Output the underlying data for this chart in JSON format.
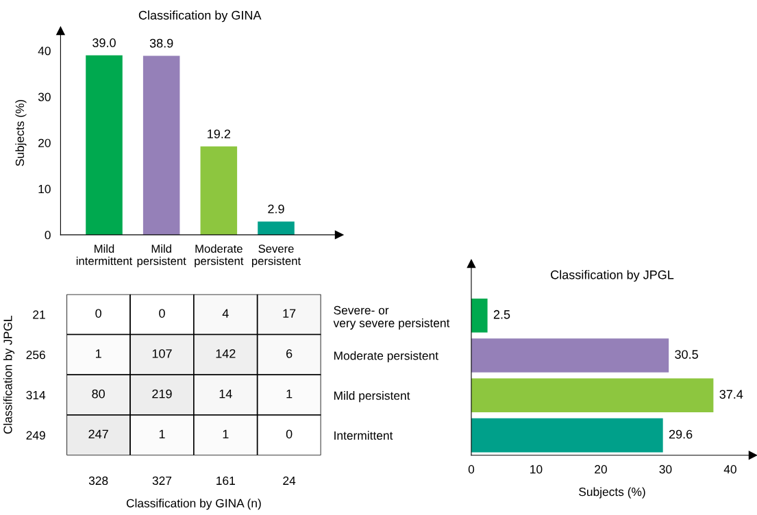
{
  "chart_data": [
    {
      "type": "bar",
      "title": "Classification by GINA",
      "ylabel": "Subjects (%)",
      "categories": [
        "Mild\nintermittent",
        "Mild\npersistent",
        "Moderate\npersistent",
        "Severe\npersistent"
      ],
      "values": [
        39.0,
        38.9,
        19.2,
        2.9
      ],
      "value_labels": [
        "39.0",
        "38.9",
        "19.2",
        "2.9"
      ],
      "colors": [
        "#00a94f",
        "#9580b8",
        "#8dc63f",
        "#00a08a"
      ],
      "ylim": [
        0,
        44.3
      ],
      "yticks": [
        0,
        10,
        20,
        30,
        40
      ],
      "grid": false,
      "legend": false
    },
    {
      "type": "heatmap",
      "xlabel": "Classification by GINA (n)",
      "ylabel": "Classification by JPGL",
      "categories": [
        "328",
        "327",
        "161",
        "24"
      ],
      "y_categories": [
        "21",
        "256",
        "314",
        "249"
      ],
      "cells": [
        [
          0,
          0,
          4,
          17
        ],
        [
          1,
          107,
          142,
          6
        ],
        [
          80,
          219,
          14,
          1
        ],
        [
          247,
          1,
          1,
          0
        ]
      ],
      "cell_labels": [
        [
          "0",
          "0",
          "4",
          "17"
        ],
        [
          "1",
          "107",
          "142",
          "6"
        ],
        [
          "80",
          "219",
          "14",
          "1"
        ],
        [
          "247",
          "1",
          "1",
          "0"
        ]
      ]
    },
    {
      "type": "bar",
      "orientation": "horizontal",
      "title": "Classification by JPGL",
      "xlabel": "Subjects (%)",
      "categories": [
        "Severe- or\nvery severe persistent",
        "Moderate persistent",
        "Mild persistent",
        "Intermittent"
      ],
      "values": [
        2.5,
        30.5,
        37.4,
        29.6
      ],
      "value_labels": [
        "2.5",
        "30.5",
        "37.4",
        "29.6"
      ],
      "colors": [
        "#00a94f",
        "#9580b8",
        "#8dc63f",
        "#00a08a"
      ],
      "xlim": [
        0,
        43.5
      ],
      "xticks": [
        0,
        10,
        20,
        30,
        40
      ],
      "grid": false,
      "legend": false
    }
  ]
}
